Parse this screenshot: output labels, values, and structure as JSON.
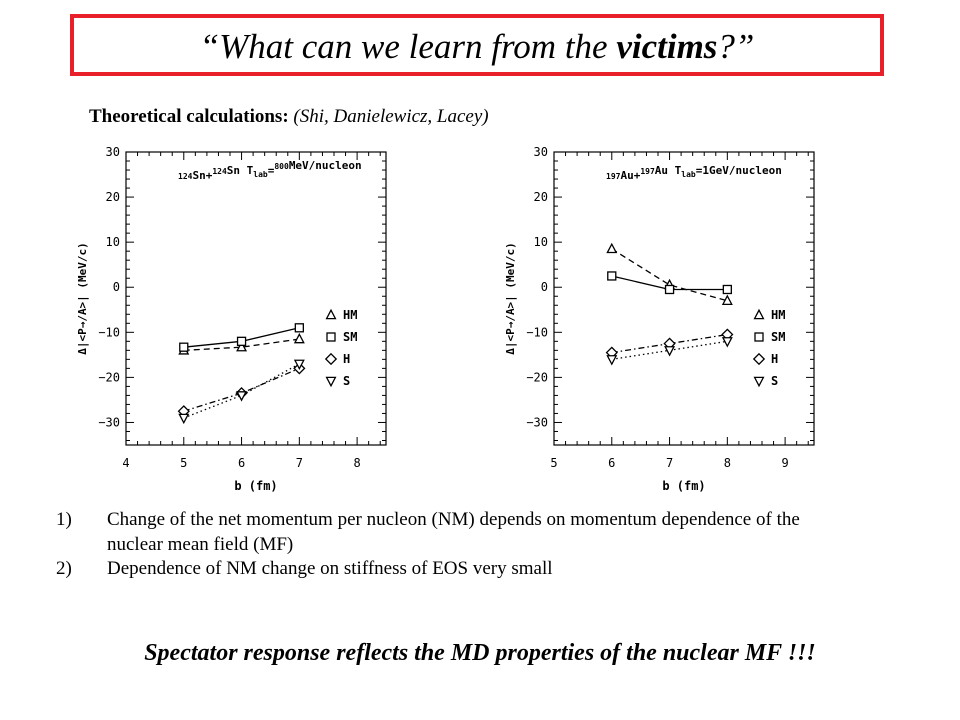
{
  "title": {
    "prefix": "“What can we learn from the ",
    "bold": "victims",
    "suffix": "?”",
    "border_color": "#e8202a"
  },
  "subtitle": {
    "label": "Theoretical calculations:",
    "authors": " (Shi, Danielewicz, Lacey)"
  },
  "chart_data": [
    {
      "type": "line",
      "title": "124Sn+124Sn Tlab=800MeV/nucleon",
      "xlabel": "b (fm)",
      "ylabel": "Δ|<P→/A>| (MeV/c)",
      "xlim": [
        4,
        8.5
      ],
      "ylim": [
        -35,
        30
      ],
      "xticks": [
        4,
        5,
        6,
        7,
        8
      ],
      "yticks": [
        30,
        20,
        10,
        0,
        -10,
        -20,
        -30
      ],
      "x": [
        5,
        6,
        7
      ],
      "legend_position": "right",
      "series": [
        {
          "name": "HM",
          "marker": "triangle-up",
          "dash": "6,4",
          "values": [
            -14,
            -13.3,
            -11.5
          ]
        },
        {
          "name": "SM",
          "marker": "square",
          "dash": "",
          "values": [
            -13.3,
            -12,
            -9
          ]
        },
        {
          "name": "H",
          "marker": "diamond",
          "dash": "6,3,1.5,3",
          "values": [
            -27.5,
            -23.5,
            -18
          ]
        },
        {
          "name": "S",
          "marker": "triangle-down",
          "dash": "1.5,3",
          "values": [
            -29,
            -24,
            -17
          ]
        }
      ]
    },
    {
      "type": "line",
      "title": "197Au+197Au Tlab=1GeV/nucleon",
      "xlabel": "b (fm)",
      "ylabel": "Δ|<P→/A>| (MeV/c)",
      "xlim": [
        5,
        9.5
      ],
      "ylim": [
        -35,
        30
      ],
      "xticks": [
        5,
        6,
        7,
        8,
        9
      ],
      "yticks": [
        30,
        20,
        10,
        0,
        -10,
        -20,
        -30
      ],
      "x": [
        6,
        7,
        8
      ],
      "legend_position": "right",
      "series": [
        {
          "name": "HM",
          "marker": "triangle-up",
          "dash": "6,4",
          "values": [
            8.5,
            0.5,
            -3
          ]
        },
        {
          "name": "SM",
          "marker": "square",
          "dash": "",
          "values": [
            2.5,
            -0.5,
            -0.5
          ]
        },
        {
          "name": "H",
          "marker": "diamond",
          "dash": "6,3,1.5,3",
          "values": [
            -14.5,
            -12.5,
            -10.5
          ]
        },
        {
          "name": "S",
          "marker": "triangle-down",
          "dash": "1.5,3",
          "values": [
            -16,
            -14,
            -12
          ]
        }
      ]
    }
  ],
  "conclusions": [
    {
      "num": "1)",
      "text": "Change of the net momentum per nucleon (NM) depends on momentum dependence of the nuclear mean field (MF)"
    },
    {
      "num": "2)",
      "text": "Dependence of NM change on stiffness of EOS very small"
    }
  ],
  "bottom_line": "Spectator response reflects the MD properties of the nuclear MF !!!"
}
